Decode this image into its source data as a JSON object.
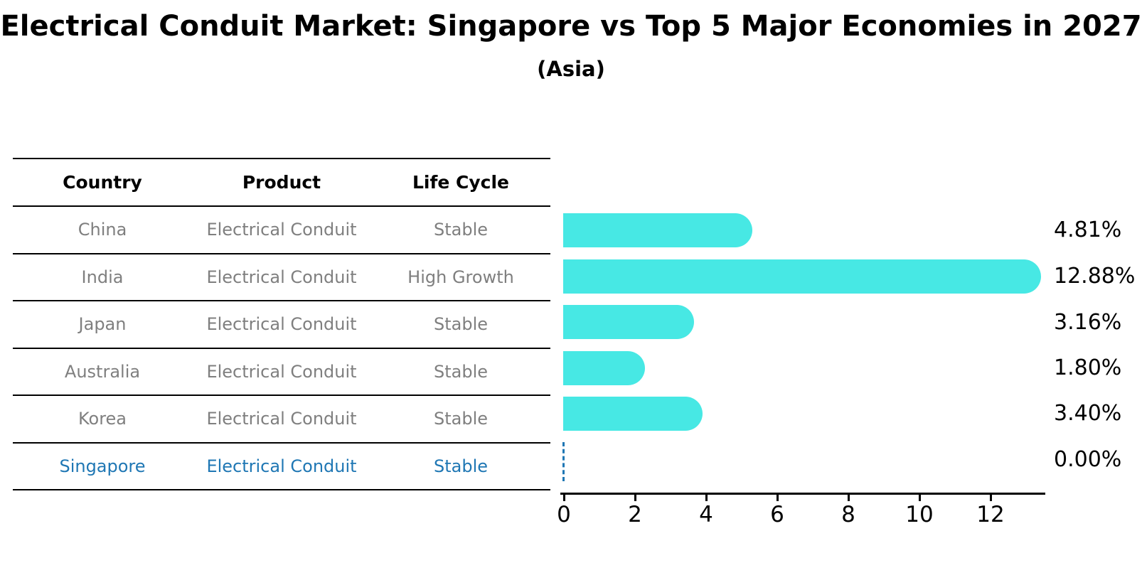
{
  "title": "Electrical Conduit Market: Singapore vs Top 5 Major Economies in 2027",
  "subtitle": "(Asia)",
  "table": {
    "headers": [
      "Country",
      "Product",
      "Life Cycle"
    ],
    "rows": [
      {
        "country": "China",
        "product": "Electrical Conduit",
        "life_cycle": "Stable",
        "highlight": false
      },
      {
        "country": "India",
        "product": "Electrical Conduit",
        "life_cycle": "High Growth",
        "highlight": false
      },
      {
        "country": "Japan",
        "product": "Electrical Conduit",
        "life_cycle": "Stable",
        "highlight": false
      },
      {
        "country": "Australia",
        "product": "Electrical Conduit",
        "life_cycle": "Stable",
        "highlight": false
      },
      {
        "country": "Korea",
        "product": "Electrical Conduit",
        "life_cycle": "Stable",
        "highlight": false
      },
      {
        "country": "Singapore",
        "product": "Electrical Conduit",
        "life_cycle": "Stable",
        "highlight": true
      }
    ]
  },
  "chart_data": {
    "type": "bar",
    "orientation": "horizontal",
    "categories": [
      "China",
      "India",
      "Japan",
      "Australia",
      "Korea",
      "Singapore"
    ],
    "values": [
      4.81,
      12.88,
      3.16,
      1.8,
      3.4,
      0.0
    ],
    "labels": [
      "4.81%",
      "12.88%",
      "3.16%",
      "1.80%",
      "3.40%",
      "0.00%"
    ],
    "xticks": [
      "0",
      "2",
      "4",
      "6",
      "8",
      "10",
      "12"
    ],
    "xlim": [
      0,
      13.5
    ],
    "grid": false,
    "legend": "none",
    "bar_color": "#47e8e4",
    "highlight_color": "#1f77b4",
    "zero_value_style": "dashed-line-at-zero",
    "title": "Electrical Conduit Market: Singapore vs Top 5 Major Economies in 2027",
    "subtitle": "(Asia)"
  },
  "colors": {
    "bar": "#47e8e4",
    "highlight": "#1f77b4",
    "table_text": "#7f7f7f",
    "heading_text": "#000000"
  }
}
